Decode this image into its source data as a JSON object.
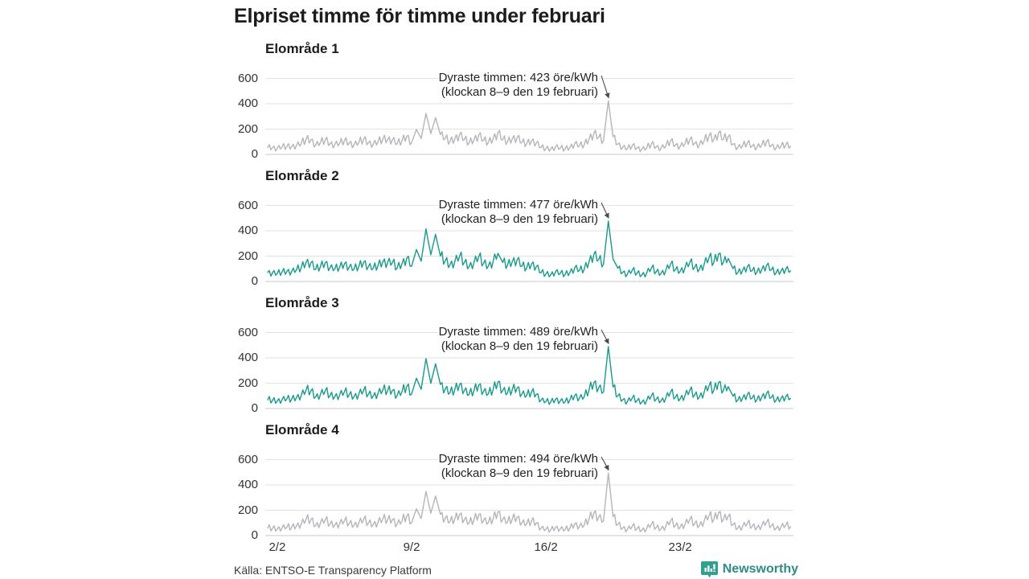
{
  "title": "Elpriset timme för timme under februari",
  "footer": {
    "source": "Källa: ENTSO-E Transparency Platform",
    "brand": "Newsworthy"
  },
  "colors": {
    "teal_line": "#189a8c",
    "gray_line": "#b4b4bc",
    "gridline": "#e2e2e2",
    "zero_line": "#c8c8cc",
    "arrow": "#4a4a4a",
    "brand_teal": "#2e8c85",
    "brand_icon": "#31a08e",
    "text_dark": "#1c1c1c",
    "text_tick": "#333333"
  },
  "chart_data": {
    "type": "line",
    "title": "Elpriset timme för timme under februari",
    "xlabel": "",
    "ylabel": "öre/kWh",
    "unit": "öre/kWh",
    "grid": "horizontal",
    "legend": "none",
    "y_ticks": [
      0,
      200,
      400,
      600
    ],
    "ylim": [
      0,
      650
    ],
    "x_tick_labels": [
      "2/2",
      "9/2",
      "16/2",
      "23/2"
    ],
    "x_tick_days": [
      1,
      8,
      15,
      22
    ],
    "x_range_days": [
      0.375,
      27.9
    ],
    "sample_interval_hours": 6,
    "spike_index": 73,
    "spike_day": 18.25,
    "base_values_6h": [
      45,
      50,
      72,
      68,
      62,
      75,
      80,
      78,
      92,
      110,
      152,
      148,
      95,
      118,
      148,
      108,
      100,
      112,
      140,
      115,
      98,
      120,
      152,
      118,
      105,
      125,
      155,
      150,
      150,
      108,
      140,
      185,
      120,
      252,
      160,
      415,
      210,
      372,
      200,
      162,
      130,
      155,
      200,
      150,
      118,
      150,
      196,
      142,
      122,
      158,
      222,
      150,
      128,
      158,
      172,
      122,
      108,
      138,
      118,
      70,
      58,
      54,
      76,
      64,
      56,
      72,
      108,
      88,
      98,
      158,
      216,
      172,
      138,
      477,
      178,
      105,
      72,
      58,
      88,
      66,
      52,
      66,
      108,
      76,
      64,
      88,
      138,
      94,
      82,
      108,
      152,
      112,
      96,
      138,
      188,
      150,
      218,
      152,
      182,
      102,
      70,
      86,
      118,
      86,
      74,
      94,
      128,
      92,
      68,
      82,
      98,
      84
    ],
    "panels": [
      {
        "name": "Elområde 1",
        "color": "#b4b4bc",
        "scale": 0.78,
        "peak": 423,
        "annotation_line1": "Dyraste timmen: 423 öre/kWh",
        "annotation_line2": "(klockan 8–9 den 19 februari)"
      },
      {
        "name": "Elområde 2",
        "color": "#189a8c",
        "scale": 1.0,
        "peak": 477,
        "annotation_line1": "Dyraste timmen: 477 öre/kWh",
        "annotation_line2": "(klockan 8–9 den 19 februari)"
      },
      {
        "name": "Elområde 3",
        "color": "#189a8c",
        "scale": 0.95,
        "peak": 489,
        "annotation_line1": "Dyraste timmen: 489 öre/kWh",
        "annotation_line2": "(klockan 8–9 den 19 februari)"
      },
      {
        "name": "Elområde 4",
        "color": "#b4b4bc",
        "scale": 0.84,
        "peak": 494,
        "annotation_line1": "Dyraste timmen: 494 öre/kWh",
        "annotation_line2": "(klockan 8–9 den 19 februari)"
      }
    ]
  }
}
